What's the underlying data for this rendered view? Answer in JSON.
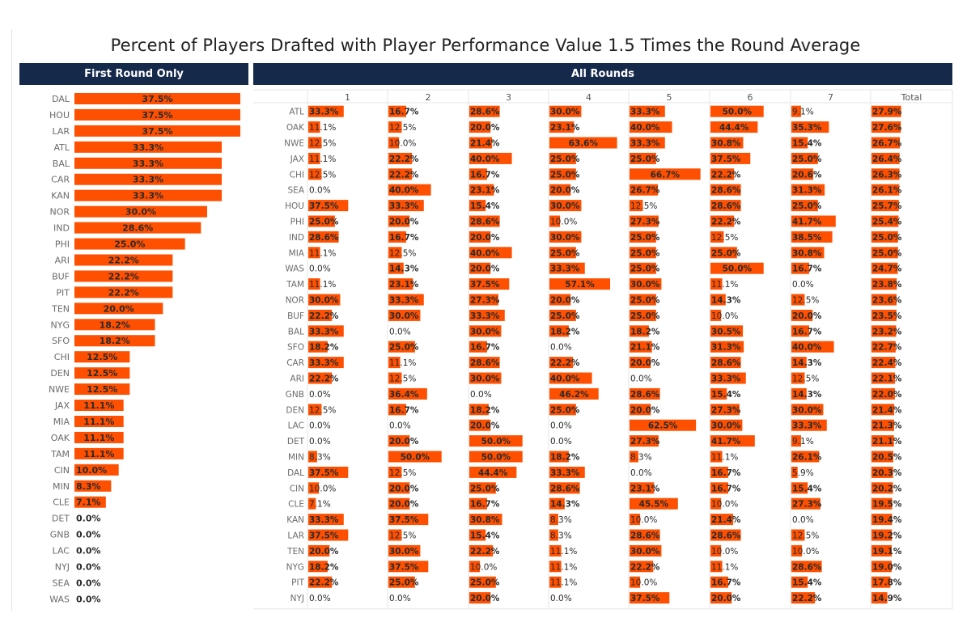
{
  "title": "Percent of Players Drafted with Player Performance Value 1.5 Times the Round Average",
  "colors": {
    "bar": "#fe5000",
    "header_bg": "#15294b",
    "header_text": "#ffffff",
    "grid": "#e6e6e6"
  },
  "panels": {
    "first_round_header": "First Round Only",
    "all_rounds_header": "All Rounds"
  },
  "chart_data": [
    {
      "type": "bar",
      "title": "First Round Only",
      "orientation": "horizontal",
      "value_format": "percent",
      "categories": [
        "DAL",
        "HOU",
        "LAR",
        "ATL",
        "BAL",
        "CAR",
        "KAN",
        "NOR",
        "IND",
        "PHI",
        "ARI",
        "BUF",
        "PIT",
        "TEN",
        "NYG",
        "SFO",
        "CHI",
        "DEN",
        "NWE",
        "JAX",
        "MIA",
        "OAK",
        "TAM",
        "CIN",
        "MIN",
        "CLE",
        "DET",
        "GNB",
        "LAC",
        "NYJ",
        "SEA",
        "WAS"
      ],
      "values": [
        37.5,
        37.5,
        37.5,
        33.3,
        33.3,
        33.3,
        33.3,
        30.0,
        28.6,
        25.0,
        22.2,
        22.2,
        22.2,
        20.0,
        18.2,
        18.2,
        12.5,
        12.5,
        12.5,
        11.1,
        11.1,
        11.1,
        11.1,
        10.0,
        8.3,
        7.1,
        0.0,
        0.0,
        0.0,
        0.0,
        0.0,
        0.0
      ],
      "xlim": [
        0,
        37.5
      ]
    },
    {
      "type": "bar",
      "title": "All Rounds",
      "orientation": "horizontal",
      "value_format": "percent",
      "columns": [
        "1",
        "2",
        "3",
        "4",
        "5",
        "6",
        "7",
        "Total"
      ],
      "rows": [
        {
          "team": "ATL",
          "values": [
            33.3,
            16.7,
            28.6,
            30.0,
            33.3,
            50.0,
            9.1,
            27.9
          ]
        },
        {
          "team": "OAK",
          "values": [
            11.1,
            12.5,
            20.0,
            23.1,
            40.0,
            44.4,
            35.3,
            27.6
          ]
        },
        {
          "team": "NWE",
          "values": [
            12.5,
            10.0,
            21.4,
            63.6,
            33.3,
            30.8,
            15.4,
            26.7
          ]
        },
        {
          "team": "JAX",
          "values": [
            11.1,
            22.2,
            40.0,
            25.0,
            25.0,
            37.5,
            25.0,
            26.4
          ]
        },
        {
          "team": "CHI",
          "values": [
            12.5,
            22.2,
            16.7,
            25.0,
            66.7,
            22.2,
            20.6,
            26.3
          ]
        },
        {
          "team": "SEA",
          "values": [
            0.0,
            40.0,
            23.1,
            20.0,
            26.7,
            28.6,
            31.3,
            26.1
          ]
        },
        {
          "team": "HOU",
          "values": [
            37.5,
            33.3,
            15.4,
            30.0,
            12.5,
            28.6,
            25.0,
            25.7
          ]
        },
        {
          "team": "PHI",
          "values": [
            25.0,
            20.0,
            28.6,
            10.0,
            27.3,
            22.2,
            41.7,
            25.4
          ]
        },
        {
          "team": "IND",
          "values": [
            28.6,
            16.7,
            20.0,
            30.0,
            25.0,
            12.5,
            38.5,
            25.0
          ]
        },
        {
          "team": "MIA",
          "values": [
            11.1,
            12.5,
            40.0,
            25.0,
            25.0,
            25.0,
            30.8,
            25.0
          ]
        },
        {
          "team": "WAS",
          "values": [
            0.0,
            14.3,
            20.0,
            33.3,
            25.0,
            50.0,
            16.7,
            24.7
          ]
        },
        {
          "team": "TAM",
          "values": [
            11.1,
            23.1,
            37.5,
            57.1,
            30.0,
            11.1,
            0.0,
            23.8
          ]
        },
        {
          "team": "NOR",
          "values": [
            30.0,
            33.3,
            27.3,
            20.0,
            25.0,
            14.3,
            12.5,
            23.6
          ]
        },
        {
          "team": "BUF",
          "values": [
            22.2,
            30.0,
            33.3,
            25.0,
            25.0,
            10.0,
            20.0,
            23.5
          ]
        },
        {
          "team": "BAL",
          "values": [
            33.3,
            0.0,
            30.0,
            18.2,
            18.2,
            30.5,
            16.7,
            23.2
          ]
        },
        {
          "team": "SFO",
          "values": [
            18.2,
            25.0,
            16.7,
            0.0,
            21.1,
            31.3,
            40.0,
            22.7
          ]
        },
        {
          "team": "CAR",
          "values": [
            33.3,
            11.1,
            28.6,
            22.2,
            20.0,
            28.6,
            14.3,
            22.4
          ]
        },
        {
          "team": "ARI",
          "values": [
            22.2,
            12.5,
            30.0,
            40.0,
            0.0,
            33.3,
            12.5,
            22.1
          ]
        },
        {
          "team": "GNB",
          "values": [
            0.0,
            36.4,
            0.0,
            46.2,
            28.6,
            15.4,
            14.3,
            22.0
          ]
        },
        {
          "team": "DEN",
          "values": [
            12.5,
            16.7,
            18.2,
            25.0,
            20.0,
            27.3,
            30.0,
            21.4
          ]
        },
        {
          "team": "LAC",
          "values": [
            0.0,
            0.0,
            20.0,
            0.0,
            62.5,
            30.0,
            33.3,
            21.3
          ]
        },
        {
          "team": "DET",
          "values": [
            0.0,
            20.0,
            50.0,
            0.0,
            27.3,
            41.7,
            9.1,
            21.1
          ]
        },
        {
          "team": "MIN",
          "values": [
            8.3,
            50.0,
            50.0,
            18.2,
            8.3,
            11.1,
            26.1,
            20.5
          ]
        },
        {
          "team": "DAL",
          "values": [
            37.5,
            12.5,
            44.4,
            33.3,
            0.0,
            16.7,
            5.9,
            20.3
          ]
        },
        {
          "team": "CIN",
          "values": [
            10.0,
            20.0,
            25.0,
            28.6,
            23.1,
            16.7,
            15.4,
            20.2
          ]
        },
        {
          "team": "CLE",
          "values": [
            7.1,
            20.0,
            16.7,
            14.3,
            45.5,
            10.0,
            27.3,
            19.5
          ]
        },
        {
          "team": "KAN",
          "values": [
            33.3,
            37.5,
            30.8,
            8.3,
            10.0,
            21.4,
            0.0,
            19.4
          ]
        },
        {
          "team": "LAR",
          "values": [
            37.5,
            12.5,
            15.4,
            8.3,
            28.6,
            28.6,
            12.5,
            19.2
          ]
        },
        {
          "team": "TEN",
          "values": [
            20.0,
            30.0,
            22.2,
            11.1,
            30.0,
            10.0,
            10.0,
            19.1
          ]
        },
        {
          "team": "NYG",
          "values": [
            18.2,
            37.5,
            10.0,
            11.1,
            22.2,
            11.1,
            28.6,
            19.0
          ]
        },
        {
          "team": "PIT",
          "values": [
            22.2,
            25.0,
            25.0,
            11.1,
            10.0,
            16.7,
            15.4,
            17.8
          ]
        },
        {
          "team": "NYJ",
          "values": [
            0.0,
            0.0,
            20.0,
            0.0,
            37.5,
            20.0,
            22.2,
            14.9
          ]
        }
      ]
    }
  ]
}
